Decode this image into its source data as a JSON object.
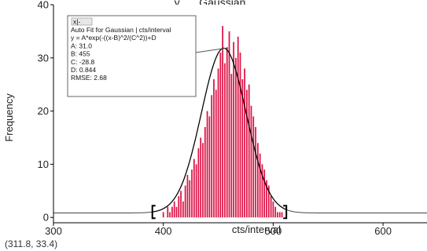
{
  "chart_data": {
    "type": "bar",
    "title_partial": "…y, … Gaussian",
    "xlabel": "cts/interval",
    "ylabel": "Frequency",
    "xlim": [
      300,
      640
    ],
    "ylim": [
      -1,
      40
    ],
    "x_ticks": [
      300,
      400,
      500,
      600
    ],
    "y_ticks": [
      0,
      10,
      20,
      30,
      40
    ],
    "grid": false,
    "bar_color": "#dd1144",
    "fit_color": "#000000",
    "bins": [
      [
        394,
        0
      ],
      [
        396,
        0
      ],
      [
        398,
        0
      ],
      [
        400,
        1
      ],
      [
        402,
        0
      ],
      [
        404,
        2
      ],
      [
        406,
        1
      ],
      [
        408,
        2
      ],
      [
        410,
        3
      ],
      [
        412,
        2
      ],
      [
        414,
        4
      ],
      [
        416,
        5
      ],
      [
        418,
        3
      ],
      [
        420,
        6
      ],
      [
        422,
        8
      ],
      [
        424,
        7
      ],
      [
        426,
        9
      ],
      [
        428,
        11
      ],
      [
        430,
        10
      ],
      [
        432,
        13
      ],
      [
        434,
        15
      ],
      [
        436,
        14
      ],
      [
        438,
        17
      ],
      [
        440,
        20
      ],
      [
        442,
        19
      ],
      [
        444,
        23
      ],
      [
        446,
        26
      ],
      [
        448,
        24
      ],
      [
        450,
        28
      ],
      [
        452,
        31
      ],
      [
        454,
        36
      ],
      [
        456,
        29
      ],
      [
        458,
        32
      ],
      [
        460,
        35
      ],
      [
        462,
        27
      ],
      [
        464,
        33
      ],
      [
        466,
        30
      ],
      [
        468,
        34
      ],
      [
        470,
        31
      ],
      [
        472,
        26
      ],
      [
        474,
        28
      ],
      [
        476,
        24
      ],
      [
        478,
        25
      ],
      [
        480,
        21
      ],
      [
        482,
        19
      ],
      [
        484,
        17
      ],
      [
        486,
        14
      ],
      [
        488,
        12
      ],
      [
        490,
        10
      ],
      [
        492,
        9
      ],
      [
        494,
        7
      ],
      [
        496,
        6
      ],
      [
        498,
        4
      ],
      [
        500,
        3
      ],
      [
        502,
        2
      ],
      [
        504,
        1
      ],
      [
        506,
        1
      ],
      [
        508,
        1
      ],
      [
        510,
        0
      ]
    ],
    "fit": {
      "A": 31.0,
      "B": 455,
      "C": -28.8,
      "D": 0.844
    },
    "selection_range": [
      390,
      512
    ],
    "annotation": {
      "close_glyph": "x|-",
      "lines": [
        "Auto Fit for  Gaussian | cts/interval",
        "y = A*exp(-((x-B)^2/(C^2))+D",
        "A: 31.0",
        "B: 455",
        "C: -28.8",
        "D: 0.844",
        "RMSE: 2.68"
      ]
    },
    "coordinate_readout": "(311.8, 33.4)"
  }
}
